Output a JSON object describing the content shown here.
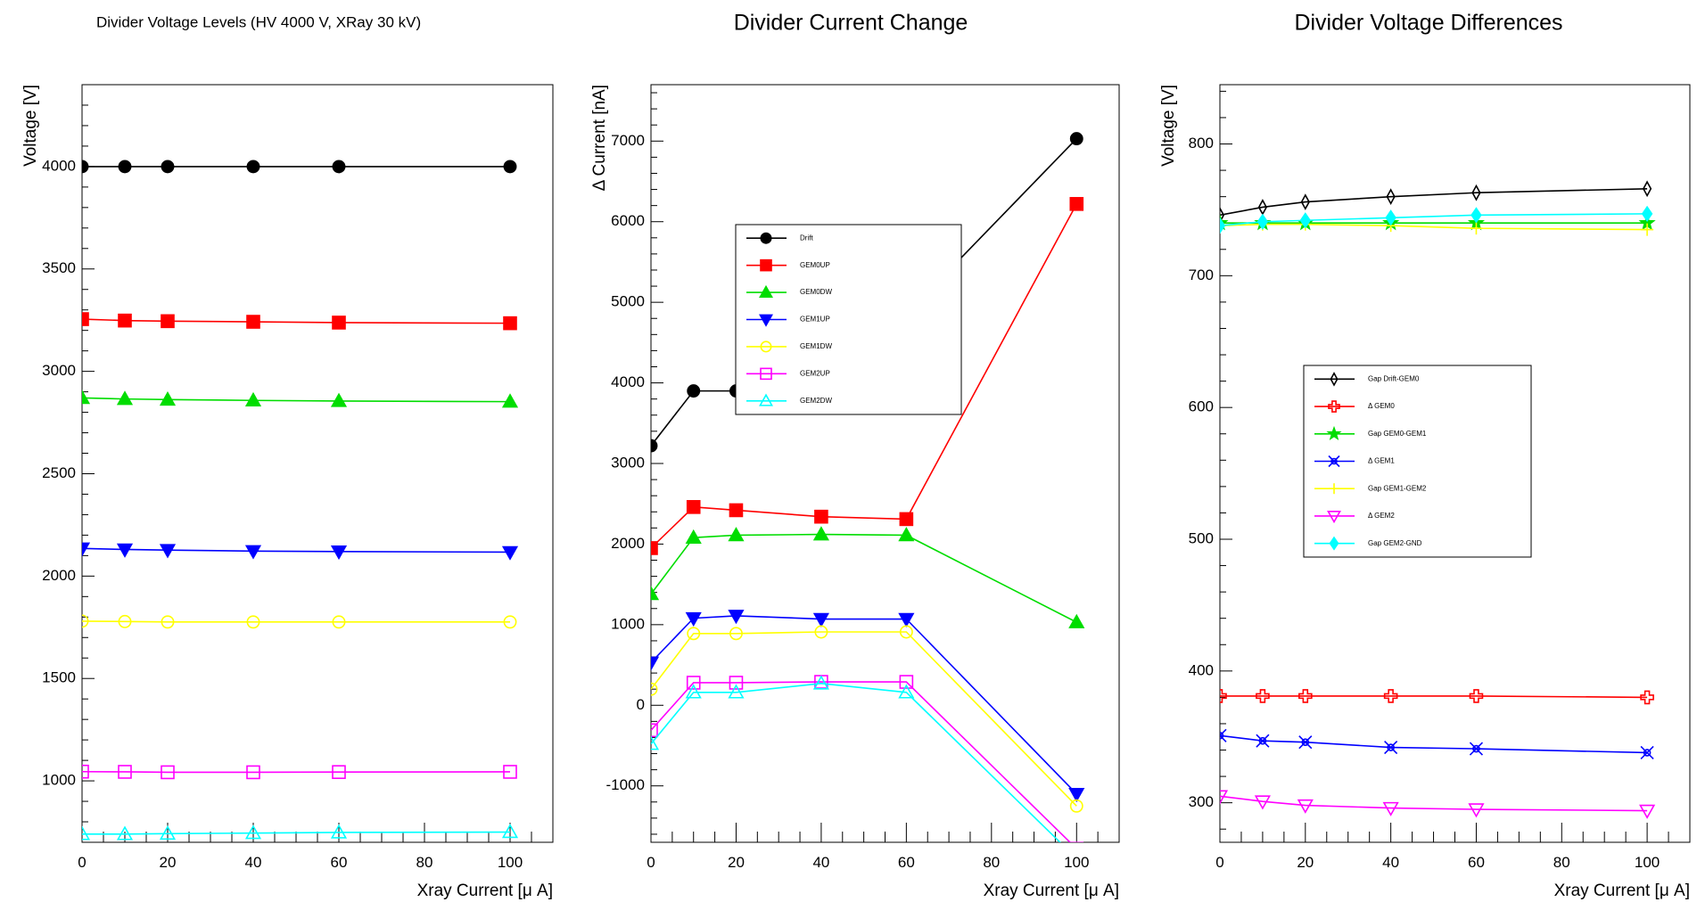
{
  "chart_data": [
    {
      "type": "line",
      "title": "Divider Voltage Levels (HV 4000 V, XRay 30 kV)",
      "xlabel": "Xray Current [μ A]",
      "ylabel": "Voltage [V]",
      "xlim": [
        0,
        110
      ],
      "ylim": [
        700,
        4400
      ],
      "xticks": [
        0,
        20,
        40,
        60,
        80,
        100
      ],
      "yticks": [
        1000,
        1500,
        2000,
        2500,
        3000,
        3500,
        4000
      ],
      "x": [
        0,
        10,
        20,
        40,
        60,
        100
      ],
      "series": [
        {
          "values": [
            4000,
            4000,
            4000,
            4000,
            4000,
            4000
          ],
          "color": "#000000",
          "marker": "circle-filled"
        },
        {
          "values": [
            3255,
            3248,
            3245,
            3242,
            3238,
            3235
          ],
          "color": "#ff0000",
          "marker": "square-filled"
        },
        {
          "values": [
            2870,
            2865,
            2862,
            2858,
            2855,
            2852
          ],
          "color": "#00dd00",
          "marker": "triangle-up-filled"
        },
        {
          "values": [
            2135,
            2130,
            2127,
            2122,
            2120,
            2117
          ],
          "color": "#0000ff",
          "marker": "triangle-down-filled"
        },
        {
          "values": [
            1780,
            1778,
            1776,
            1776,
            1776,
            1776
          ],
          "color": "#ffff00",
          "marker": "circle-open"
        },
        {
          "values": [
            1045,
            1044,
            1042,
            1042,
            1043,
            1044
          ],
          "color": "#ff00ff",
          "marker": "square-open"
        },
        {
          "values": [
            740,
            740,
            742,
            745,
            748,
            750
          ],
          "color": "#00ffff",
          "marker": "triangle-up-open"
        }
      ]
    },
    {
      "type": "line",
      "title": "Divider Current Change",
      "xlabel": "Xray Current [μ A]",
      "ylabel": "Δ Current [nA]",
      "xlim": [
        0,
        110
      ],
      "ylim": [
        -1700,
        7700
      ],
      "xticks": [
        0,
        20,
        40,
        60,
        80,
        100
      ],
      "yticks": [
        -1000,
        0,
        1000,
        2000,
        3000,
        4000,
        5000,
        6000,
        7000
      ],
      "x": [
        0,
        10,
        20,
        40,
        60,
        100
      ],
      "legend": {
        "position": "center-left",
        "entries": [
          "Drift",
          "GEM0UP",
          "GEM0DW",
          "GEM1UP",
          "GEM1DW",
          "GEM2UP",
          "GEM2DW"
        ]
      },
      "series": [
        {
          "name": "Drift",
          "values": [
            3220,
            3900,
            3900,
            3900,
            4850,
            7030
          ],
          "color": "#000000",
          "marker": "circle-filled"
        },
        {
          "name": "GEM0UP",
          "values": [
            1950,
            2460,
            2420,
            2340,
            2310,
            6220
          ],
          "color": "#ff0000",
          "marker": "square-filled"
        },
        {
          "name": "GEM0DW",
          "values": [
            1380,
            2080,
            2110,
            2120,
            2110,
            1030
          ],
          "color": "#00dd00",
          "marker": "triangle-up-filled"
        },
        {
          "name": "GEM1UP",
          "values": [
            530,
            1080,
            1110,
            1070,
            1070,
            -1100
          ],
          "color": "#0000ff",
          "marker": "triangle-down-filled"
        },
        {
          "name": "GEM1DW",
          "values": [
            200,
            890,
            890,
            910,
            910,
            -1250
          ],
          "color": "#ffff00",
          "marker": "circle-open"
        },
        {
          "name": "GEM2UP",
          "values": [
            -310,
            280,
            280,
            290,
            290,
            -1780
          ],
          "color": "#ff00ff",
          "marker": "square-open"
        },
        {
          "name": "GEM2DW",
          "values": [
            -480,
            160,
            160,
            270,
            160,
            -1900
          ],
          "color": "#00ffff",
          "marker": "triangle-up-open"
        }
      ]
    },
    {
      "type": "line",
      "title": "Divider Voltage Differences",
      "xlabel": "Xray Current [μ A]",
      "ylabel": "Voltage [V]",
      "xlim": [
        0,
        110
      ],
      "ylim": [
        270,
        845
      ],
      "xticks": [
        0,
        20,
        40,
        60,
        80,
        100
      ],
      "yticks": [
        300,
        400,
        500,
        600,
        700,
        800
      ],
      "x": [
        0,
        10,
        20,
        40,
        60,
        100
      ],
      "legend": {
        "position": "center-left",
        "entries": [
          "Gap Drift-GEM0",
          "Δ GEM0",
          "Gap GEM0-GEM1",
          "Δ GEM1",
          "Gap GEM1-GEM2",
          "Δ GEM2",
          "Gap GEM2-GND"
        ]
      },
      "series": [
        {
          "name": "Gap Drift-GEM0",
          "values": [
            746,
            752,
            756,
            760,
            763,
            766
          ],
          "color": "#000000",
          "marker": "diamond-open"
        },
        {
          "name": "Δ GEM0",
          "values": [
            381,
            381,
            381,
            381,
            381,
            380
          ],
          "color": "#ff0000",
          "marker": "cross-open"
        },
        {
          "name": "Gap GEM0-GEM1",
          "values": [
            740,
            740,
            740,
            740,
            740,
            740
          ],
          "color": "#00dd00",
          "marker": "star-filled"
        },
        {
          "name": "Δ GEM1",
          "values": [
            351,
            347,
            346,
            342,
            341,
            338
          ],
          "color": "#0000ff",
          "marker": "x-open"
        },
        {
          "name": "Gap GEM1-GEM2",
          "values": [
            738,
            739,
            739,
            738,
            736,
            735
          ],
          "color": "#ffff00",
          "marker": "plus"
        },
        {
          "name": "Δ GEM2",
          "values": [
            305,
            301,
            298,
            296,
            295,
            294
          ],
          "color": "#ff00ff",
          "marker": "triangle-down-open"
        },
        {
          "name": "Gap GEM2-GND",
          "values": [
            738,
            741,
            742,
            744,
            746,
            747
          ],
          "color": "#00ffff",
          "marker": "diamond-filled"
        }
      ]
    }
  ]
}
